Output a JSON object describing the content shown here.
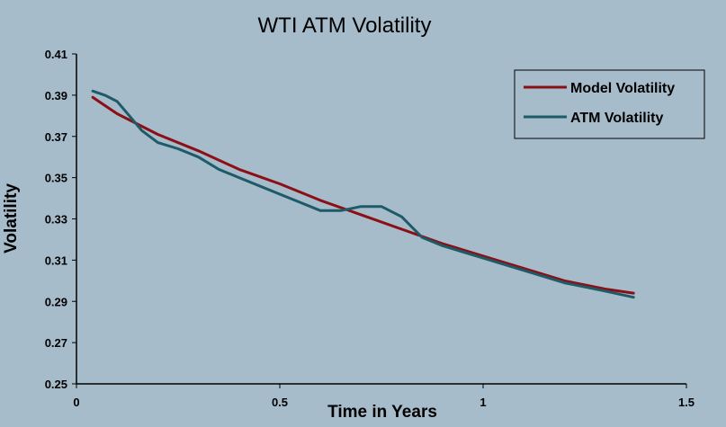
{
  "chart_data": {
    "type": "line",
    "title": "WTI ATM Volatility",
    "xlabel": "Time in Years",
    "ylabel": "Volatility",
    "xlim": [
      0,
      1.5
    ],
    "ylim": [
      0.25,
      0.41
    ],
    "x_ticks": [
      "0",
      "0.5",
      "1",
      "1.5"
    ],
    "y_ticks": [
      "0.25",
      "0.27",
      "0.29",
      "0.31",
      "0.33",
      "0.35",
      "0.37",
      "0.39",
      "0.41"
    ],
    "grid": false,
    "legend": "top-right",
    "series": [
      {
        "name": "Model Volatility",
        "color": "#8b0f15",
        "x": [
          0.04,
          0.1,
          0.2,
          0.3,
          0.4,
          0.5,
          0.6,
          0.7,
          0.8,
          0.9,
          1.0,
          1.1,
          1.2,
          1.3,
          1.37
        ],
        "y": [
          0.389,
          0.381,
          0.371,
          0.363,
          0.354,
          0.347,
          0.339,
          0.332,
          0.325,
          0.318,
          0.312,
          0.306,
          0.3,
          0.296,
          0.294
        ]
      },
      {
        "name": "ATM Volatility",
        "color": "#1f5a68",
        "x": [
          0.04,
          0.07,
          0.1,
          0.13,
          0.16,
          0.2,
          0.25,
          0.3,
          0.35,
          0.4,
          0.45,
          0.5,
          0.55,
          0.6,
          0.65,
          0.7,
          0.75,
          0.8,
          0.83,
          0.85,
          0.9,
          1.0,
          1.1,
          1.2,
          1.3,
          1.37
        ],
        "y": [
          0.392,
          0.39,
          0.387,
          0.38,
          0.373,
          0.367,
          0.364,
          0.36,
          0.354,
          0.35,
          0.346,
          0.342,
          0.338,
          0.334,
          0.334,
          0.336,
          0.336,
          0.331,
          0.325,
          0.321,
          0.317,
          0.311,
          0.305,
          0.299,
          0.295,
          0.292
        ]
      }
    ]
  }
}
